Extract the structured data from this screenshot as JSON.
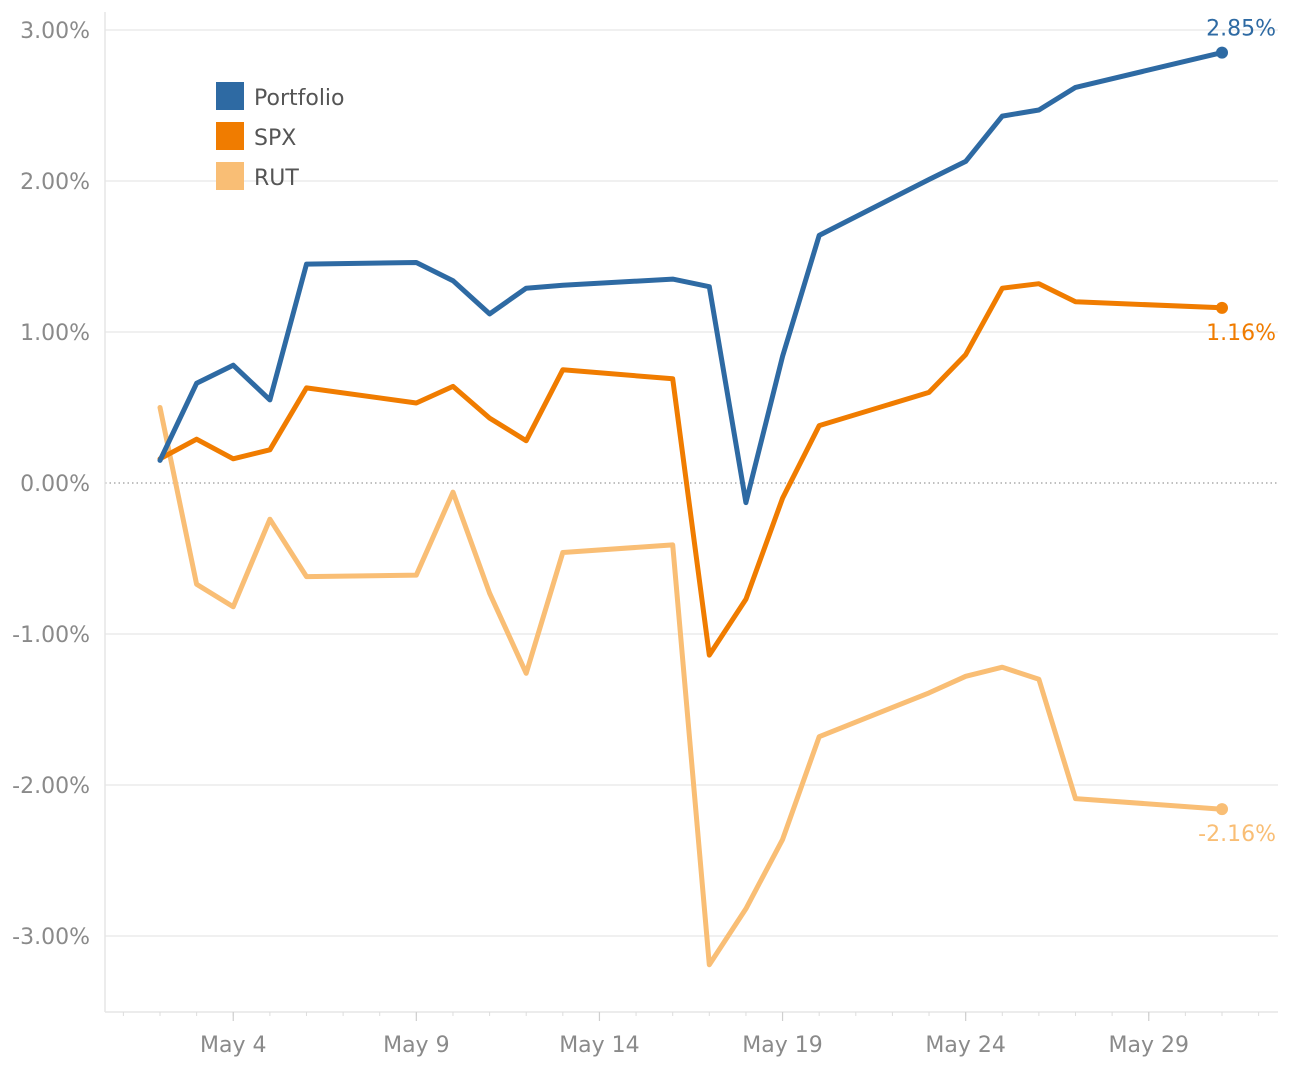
{
  "chart_data": {
    "type": "line",
    "title": "",
    "xlabel": "",
    "ylabel": "",
    "grid": true,
    "legend_position": "top-left",
    "zero_line": "dotted",
    "x_start": "2022-05-02",
    "x_end": "2022-05-31",
    "x_tick_labels": [
      "May 4",
      "May 9",
      "May 14",
      "May 19",
      "May 24",
      "May 29"
    ],
    "x_tick_dates": [
      "2022-05-04",
      "2022-05-09",
      "2022-05-14",
      "2022-05-19",
      "2022-05-24",
      "2022-05-29"
    ],
    "y_ticks": [
      3.0,
      2.0,
      1.0,
      0.0,
      -1.0,
      -2.0,
      -3.0
    ],
    "y_tick_labels": [
      "3.00%",
      "2.00%",
      "1.00%",
      "0.00%",
      "-1.00%",
      "-2.00%",
      "-3.00%"
    ],
    "ylim": [
      -3.5,
      3.1
    ],
    "x": [
      "2022-05-02",
      "2022-05-03",
      "2022-05-04",
      "2022-05-05",
      "2022-05-06",
      "2022-05-09",
      "2022-05-10",
      "2022-05-11",
      "2022-05-12",
      "2022-05-13",
      "2022-05-16",
      "2022-05-17",
      "2022-05-18",
      "2022-05-19",
      "2022-05-20",
      "2022-05-23",
      "2022-05-24",
      "2022-05-25",
      "2022-05-26",
      "2022-05-27",
      "2022-05-31"
    ],
    "series": [
      {
        "name": "Portfolio",
        "color": "#2e6aa3",
        "values": [
          0.15,
          0.66,
          0.78,
          0.55,
          1.45,
          1.46,
          1.34,
          1.12,
          1.29,
          1.31,
          1.35,
          1.3,
          -0.13,
          0.84,
          1.64,
          2.01,
          2.13,
          2.43,
          2.47,
          2.62,
          2.85
        ],
        "end_label": "2.85%"
      },
      {
        "name": "SPX",
        "color": "#f07c00",
        "values": [
          0.16,
          0.29,
          0.16,
          0.22,
          0.63,
          0.53,
          0.64,
          0.43,
          0.28,
          0.75,
          0.69,
          -1.14,
          -0.77,
          -0.1,
          0.38,
          0.6,
          0.85,
          1.29,
          1.32,
          1.2,
          1.16
        ],
        "end_label": "1.16%"
      },
      {
        "name": "RUT",
        "color": "#f9be75",
        "values": [
          0.5,
          -0.67,
          -0.82,
          -0.24,
          -0.62,
          -0.61,
          -0.06,
          -0.73,
          -1.26,
          -0.46,
          -0.41,
          -3.19,
          -2.82,
          -2.36,
          -1.68,
          -1.39,
          -1.28,
          -1.22,
          -1.3,
          -2.09,
          -2.16
        ],
        "end_label": "-2.16%"
      }
    ]
  }
}
